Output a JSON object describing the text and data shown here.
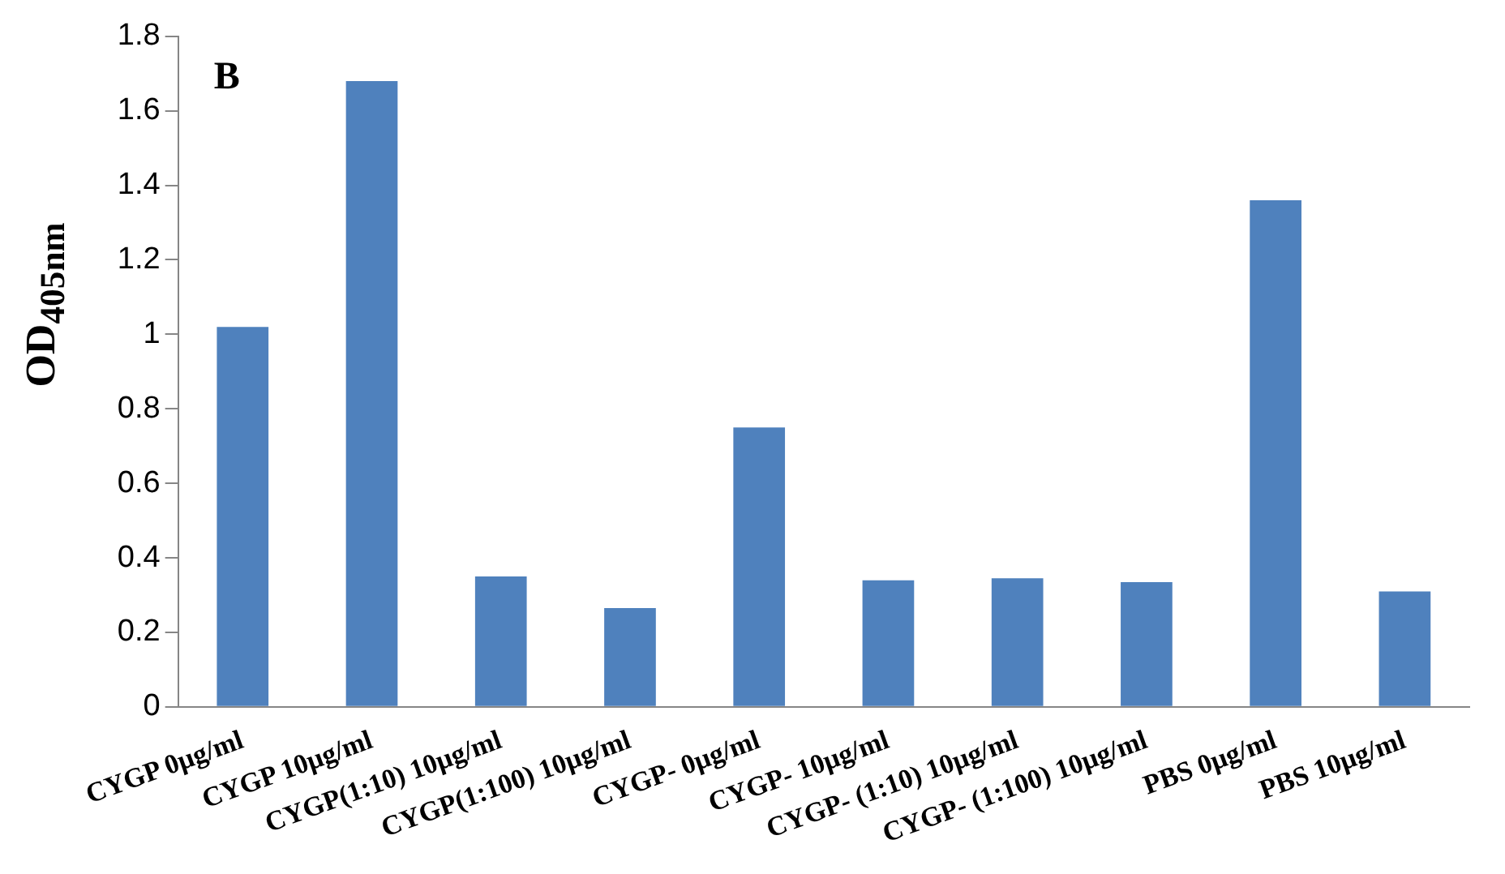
{
  "chart_data": {
    "type": "bar",
    "ylabel": "OD$_{405nm}$",
    "annotations": [
      "B"
    ],
    "categories": [
      "CYGP 0µg/ml",
      "CYGP 10µg/ml",
      "CYGP(1:10) 10µg/ml",
      "CYGP(1:100) 10µg/ml",
      "CYGP- 0µg/ml",
      "CYGP- 10µg/ml",
      "CYGP- (1:10) 10µg/ml",
      "CYGP- (1:100) 10µg/ml",
      "PBS 0µg/ml",
      "PBS 10µg/ml"
    ],
    "values": [
      1.02,
      1.68,
      0.35,
      0.265,
      0.75,
      0.34,
      0.345,
      0.335,
      1.36,
      0.31
    ],
    "color": "#4f81bd",
    "ylim": [
      0,
      1.8
    ],
    "yticks": [
      0,
      0.2,
      0.4,
      0.6,
      0.8,
      1,
      1.2,
      1.4,
      1.6,
      1.8
    ],
    "grid": false,
    "legend": false
  }
}
